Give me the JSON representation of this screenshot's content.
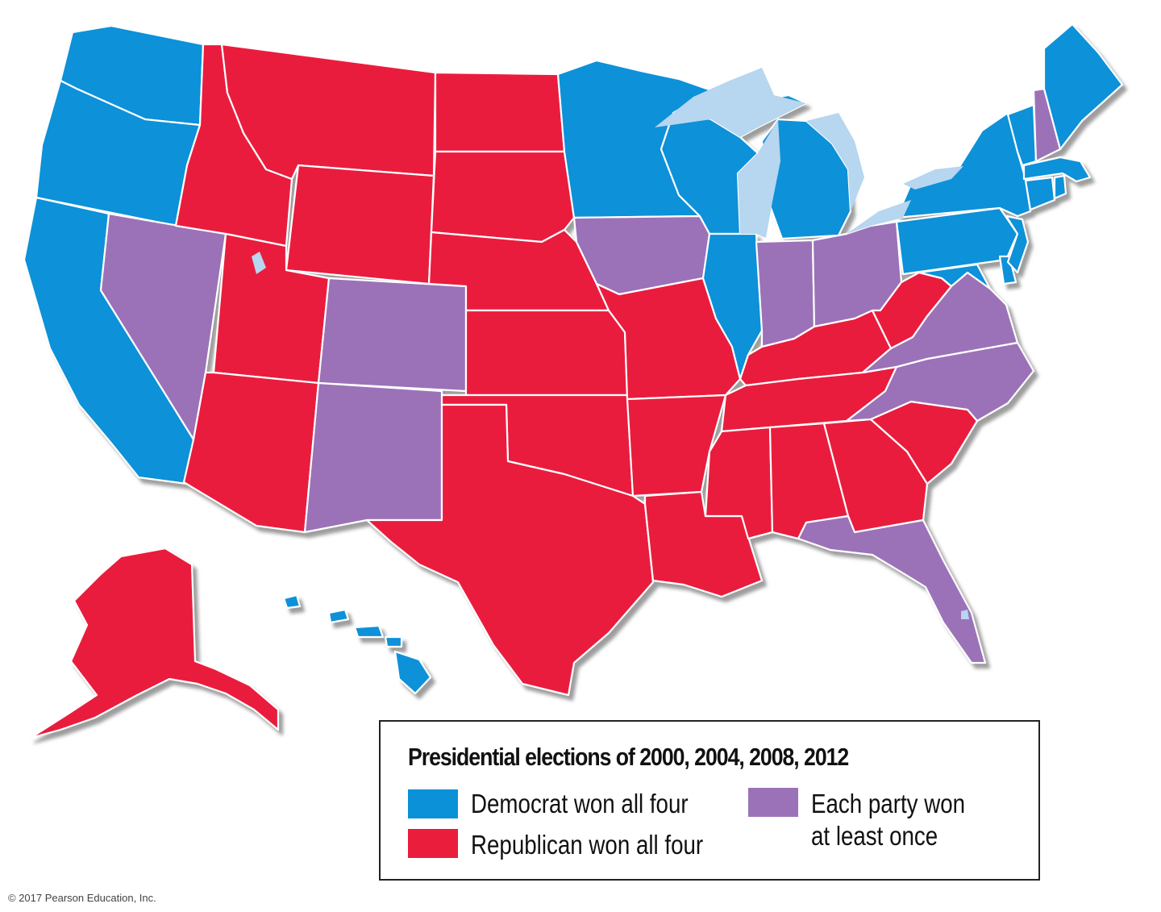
{
  "legend": {
    "title": "Presidential elections of 2000, 2004, 2008, 2012",
    "items": [
      {
        "key": "dem",
        "label": "Democrat won all four",
        "color": "#0a91d8"
      },
      {
        "key": "rep",
        "label": "Republican won all four",
        "color": "#ea1d3c"
      },
      {
        "key": "swing",
        "label_line1": "Each party won",
        "label_line2": "at least once",
        "color": "#9b72b8"
      }
    ]
  },
  "colors": {
    "lakes": "#b7d6ef",
    "shadow": "#a9a9a9",
    "border": "#ffffff"
  },
  "states": {
    "Washington": "dem",
    "Oregon": "dem",
    "California": "dem",
    "Nevada": "swing",
    "Idaho": "rep",
    "Montana": "rep",
    "Wyoming": "rep",
    "Utah": "rep",
    "Arizona": "rep",
    "Colorado": "swing",
    "New Mexico": "swing",
    "North Dakota": "rep",
    "South Dakota": "rep",
    "Nebraska": "rep",
    "Kansas": "rep",
    "Oklahoma": "rep",
    "Texas": "rep",
    "Minnesota": "dem",
    "Iowa": "swing",
    "Missouri": "rep",
    "Arkansas": "rep",
    "Louisiana": "rep",
    "Wisconsin": "dem",
    "Illinois": "dem",
    "Michigan": "dem",
    "Indiana": "swing",
    "Ohio": "swing",
    "Kentucky": "rep",
    "Tennessee": "rep",
    "Mississippi": "rep",
    "Alabama": "rep",
    "Georgia": "rep",
    "Florida": "swing",
    "South Carolina": "rep",
    "North Carolina": "swing",
    "Virginia": "swing",
    "West Virginia": "rep",
    "Pennsylvania": "dem",
    "New York": "dem",
    "Vermont": "dem",
    "New Hampshire": "swing",
    "Maine": "dem",
    "Massachusetts": "dem",
    "Rhode Island": "dem",
    "Connecticut": "dem",
    "New Jersey": "dem",
    "Delaware": "dem",
    "Maryland": "dem",
    "Alaska": "rep",
    "Hawaii": "dem"
  },
  "copyright": "© 2017 Pearson Education, Inc."
}
